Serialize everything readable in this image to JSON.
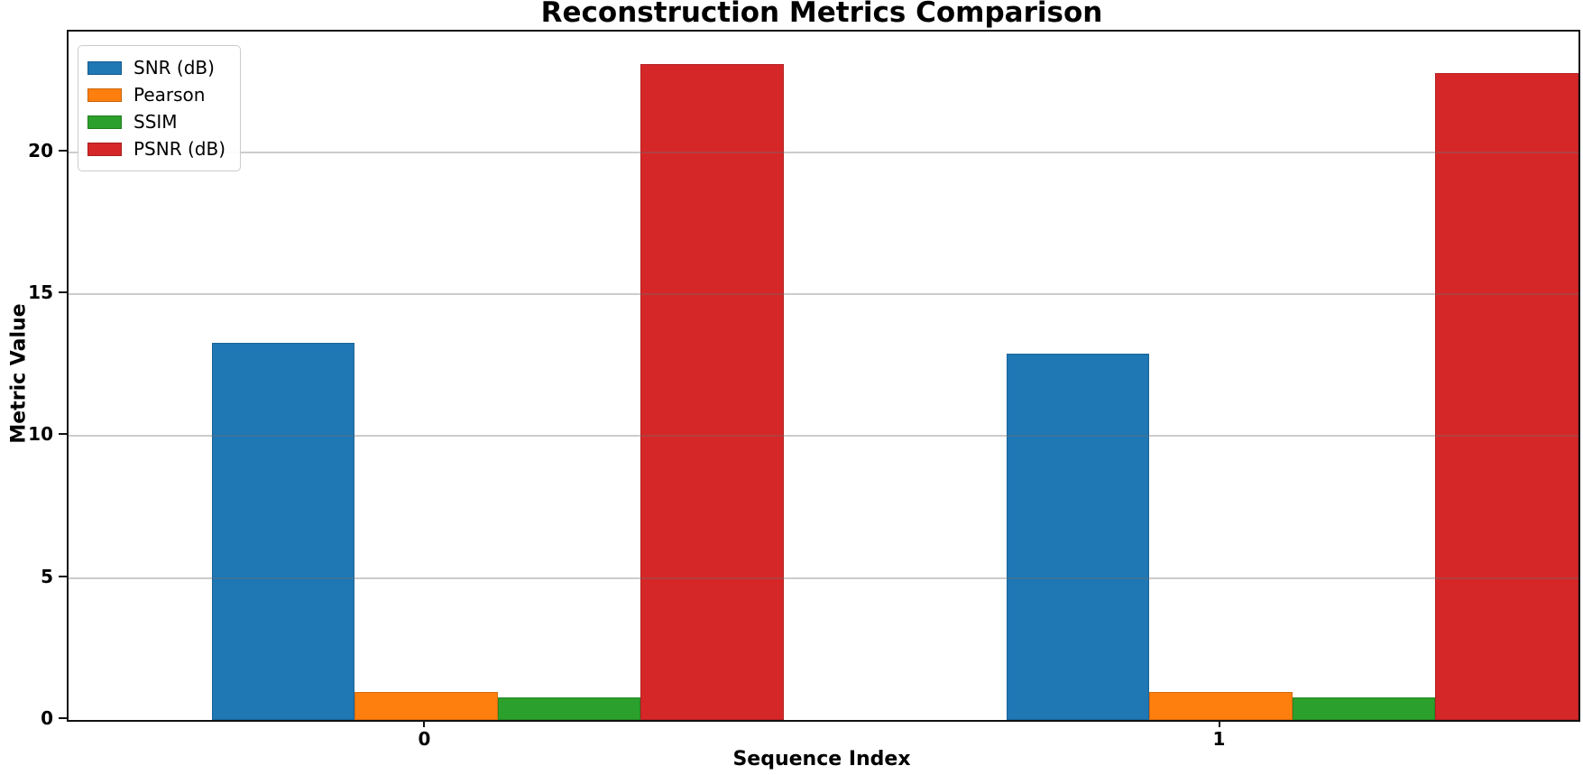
{
  "chart_data": {
    "type": "bar",
    "title": "Reconstruction Metrics Comparison",
    "xlabel": "Sequence Index",
    "ylabel": "Metric Value",
    "categories": [
      "0",
      "1"
    ],
    "series": [
      {
        "name": "SNR (dB)",
        "color": "#1f77b4",
        "values": [
          13.3,
          12.9
        ]
      },
      {
        "name": "Pearson",
        "color": "#ff7f0e",
        "values": [
          0.97,
          0.97
        ]
      },
      {
        "name": "SSIM",
        "color": "#2ca02c",
        "values": [
          0.8,
          0.78
        ]
      },
      {
        "name": "PSNR (dB)",
        "color": "#d62728",
        "values": [
          23.1,
          22.8
        ]
      }
    ],
    "ylim": [
      0,
      24.25
    ],
    "yticks": [
      0,
      5,
      10,
      15,
      20
    ],
    "xlim": [
      -0.45,
      1.45
    ],
    "bar_width": 0.18,
    "grid": "horizontal",
    "legend_position": "upper left",
    "axis_color": "#111111",
    "grid_color": "#c9c9c9"
  }
}
